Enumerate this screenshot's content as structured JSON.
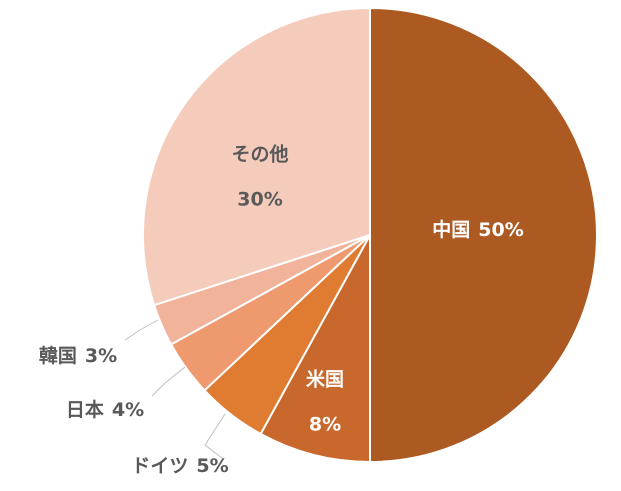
{
  "chart_data": {
    "type": "pie",
    "categories": [
      "中国",
      "米国",
      "ドイツ",
      "日本",
      "韓国",
      "その他"
    ],
    "values": [
      50,
      8,
      5,
      4,
      3,
      30
    ],
    "value_labels": [
      "50%",
      "8%",
      "5%",
      "4%",
      "3%",
      "30%"
    ],
    "colors": [
      "#ad5a22",
      "#c9682c",
      "#e07b32",
      "#ee9a6e",
      "#f2b39b",
      "#f5cbbc"
    ]
  }
}
